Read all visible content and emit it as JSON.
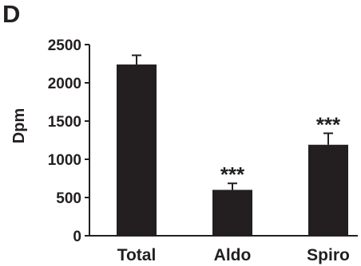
{
  "panel_label": "D",
  "chart_data": {
    "type": "bar",
    "categories": [
      "Total",
      "Aldo",
      "Spiro"
    ],
    "values": [
      2240,
      600,
      1190
    ],
    "errors": [
      120,
      85,
      150
    ],
    "annotations": [
      "",
      "***",
      "***"
    ],
    "xlabel": "",
    "ylabel": "Dpm",
    "ylim": [
      0,
      2500
    ],
    "yticks": [
      0,
      500,
      1000,
      1500,
      2000,
      2500
    ],
    "grid": false,
    "bar_color": "#231f20"
  }
}
